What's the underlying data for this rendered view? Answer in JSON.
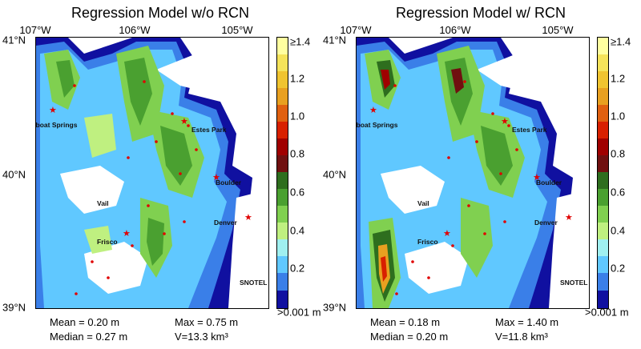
{
  "colorbar": {
    "labels": [
      "≥1.4",
      "1.2",
      "1.0",
      "0.8",
      "0.6",
      "0.4",
      "0.2",
      ">0.001 m"
    ],
    "colors": [
      "#ffffa0",
      "#f5e35a",
      "#f0c430",
      "#e8a020",
      "#e06010",
      "#d82000",
      "#a00000",
      "#701010",
      "#2e6e1e",
      "#4aa030",
      "#80d050",
      "#bff080",
      "#a0f0f0",
      "#60c8ff",
      "#3a7fe8",
      "#1010a0"
    ]
  },
  "panels": [
    {
      "title": "Regression Model w/o RCN",
      "lon_labels": [
        "107°W",
        "106°W",
        "105°W"
      ],
      "lat_labels": [
        "41°N",
        "40°N",
        "39°N"
      ],
      "cities": [
        "Steamboat Springs",
        "Estes Park",
        "Boulder",
        "Vail",
        "Denver",
        "Frisco",
        "SNOTEL"
      ],
      "stats": {
        "mean": "Mean = 0.20 m",
        "median": "Median = 0.27 m",
        "max": "Max = 0.75 m",
        "volume": "V=13.3 km³"
      }
    },
    {
      "title": "Regression Model w/ RCN",
      "lon_labels": [
        "107°W",
        "106°W",
        "105°W"
      ],
      "lat_labels": [
        "41°N",
        "40°N",
        "39°N"
      ],
      "cities": [
        "Steamboat Springs",
        "Estes Park",
        "Boulder",
        "Vail",
        "Denver",
        "Frisco",
        "SNOTEL"
      ],
      "stats": {
        "mean": "Mean = 0.18 m",
        "median": "Median = 0.20 m",
        "max": "Max = 1.40 m",
        "volume": "V=11.8 km³"
      }
    }
  ]
}
